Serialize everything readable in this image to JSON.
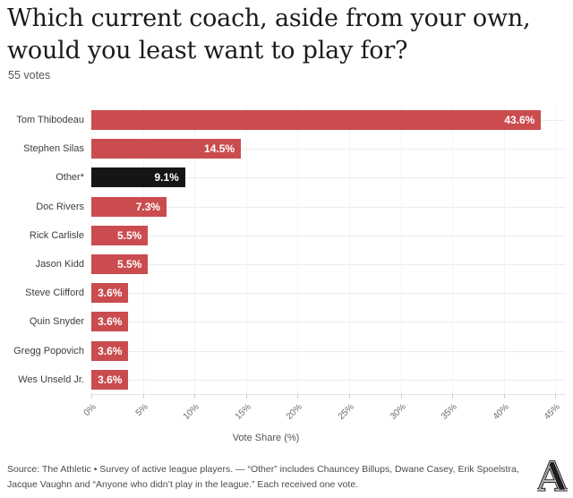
{
  "header": {
    "title_line1": "Which current coach, aside from your own,",
    "title_line2": "would you least want to play for?",
    "subtitle": "55 votes"
  },
  "chart_data": {
    "type": "bar",
    "orientation": "horizontal",
    "title": "Which current coach, aside from your own, would you least want to play for?",
    "subtitle": "55 votes",
    "categories": [
      "Tom Thibodeau",
      "Stephen Silas",
      "Other*",
      "Doc Rivers",
      "Rick Carlisle",
      "Jason Kidd",
      "Steve Clifford",
      "Quin Snyder",
      "Gregg Popovich",
      "Wes Unseld Jr."
    ],
    "values": [
      43.6,
      14.5,
      9.1,
      7.3,
      5.5,
      5.5,
      3.6,
      3.6,
      3.6,
      3.6
    ],
    "value_labels": [
      "43.6%",
      "14.5%",
      "9.1%",
      "7.3%",
      "5.5%",
      "5.5%",
      "3.6%",
      "3.6%",
      "3.6%",
      "3.6%"
    ],
    "bar_colors": [
      "#ca4c4e",
      "#ca4c4e",
      "#151515",
      "#ca4c4e",
      "#ca4c4e",
      "#ca4c4e",
      "#ca4c4e",
      "#ca4c4e",
      "#ca4c4e",
      "#ca4c4e"
    ],
    "accent_color": "#ca4c4e",
    "highlight_color": "#151515",
    "xlabel": "Vote Share (%)",
    "x_ticks": [
      0,
      5,
      10,
      15,
      20,
      25,
      30,
      35,
      40,
      45
    ],
    "x_tick_labels": [
      "0%",
      "5%",
      "10%",
      "15%",
      "20%",
      "25%",
      "30%",
      "35%",
      "40%",
      "45%"
    ],
    "xlim": [
      0,
      46
    ],
    "grid": true,
    "legend": false
  },
  "footer": {
    "source_note": "Source: The Athletic • Survey of active league players. — “Other” includes Chauncey Billups, Dwane Casey, Erik Spoelstra, Jacque Vaughn and “Anyone who didn’t play in the league.” Each received one vote.",
    "logo_letter": "A"
  }
}
